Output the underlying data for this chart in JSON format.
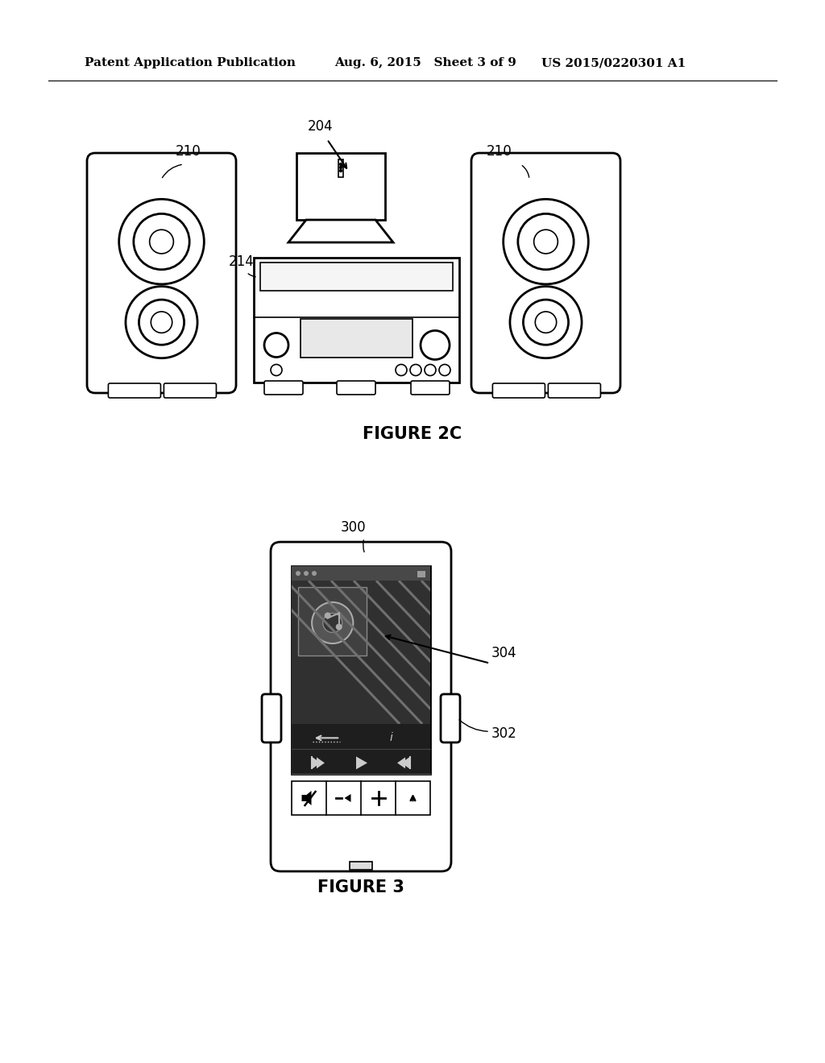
{
  "bg_color": "#ffffff",
  "header_left": "Patent Application Publication",
  "header_mid": "Aug. 6, 2015   Sheet 3 of 9",
  "header_right": "US 2015/0220301 A1",
  "fig2c_label": "FIGURE 2C",
  "fig3_label": "FIGURE 3",
  "label_204": "204",
  "label_210": "210",
  "label_214": "214",
  "label_300": "300",
  "label_302": "302",
  "label_304": "304"
}
